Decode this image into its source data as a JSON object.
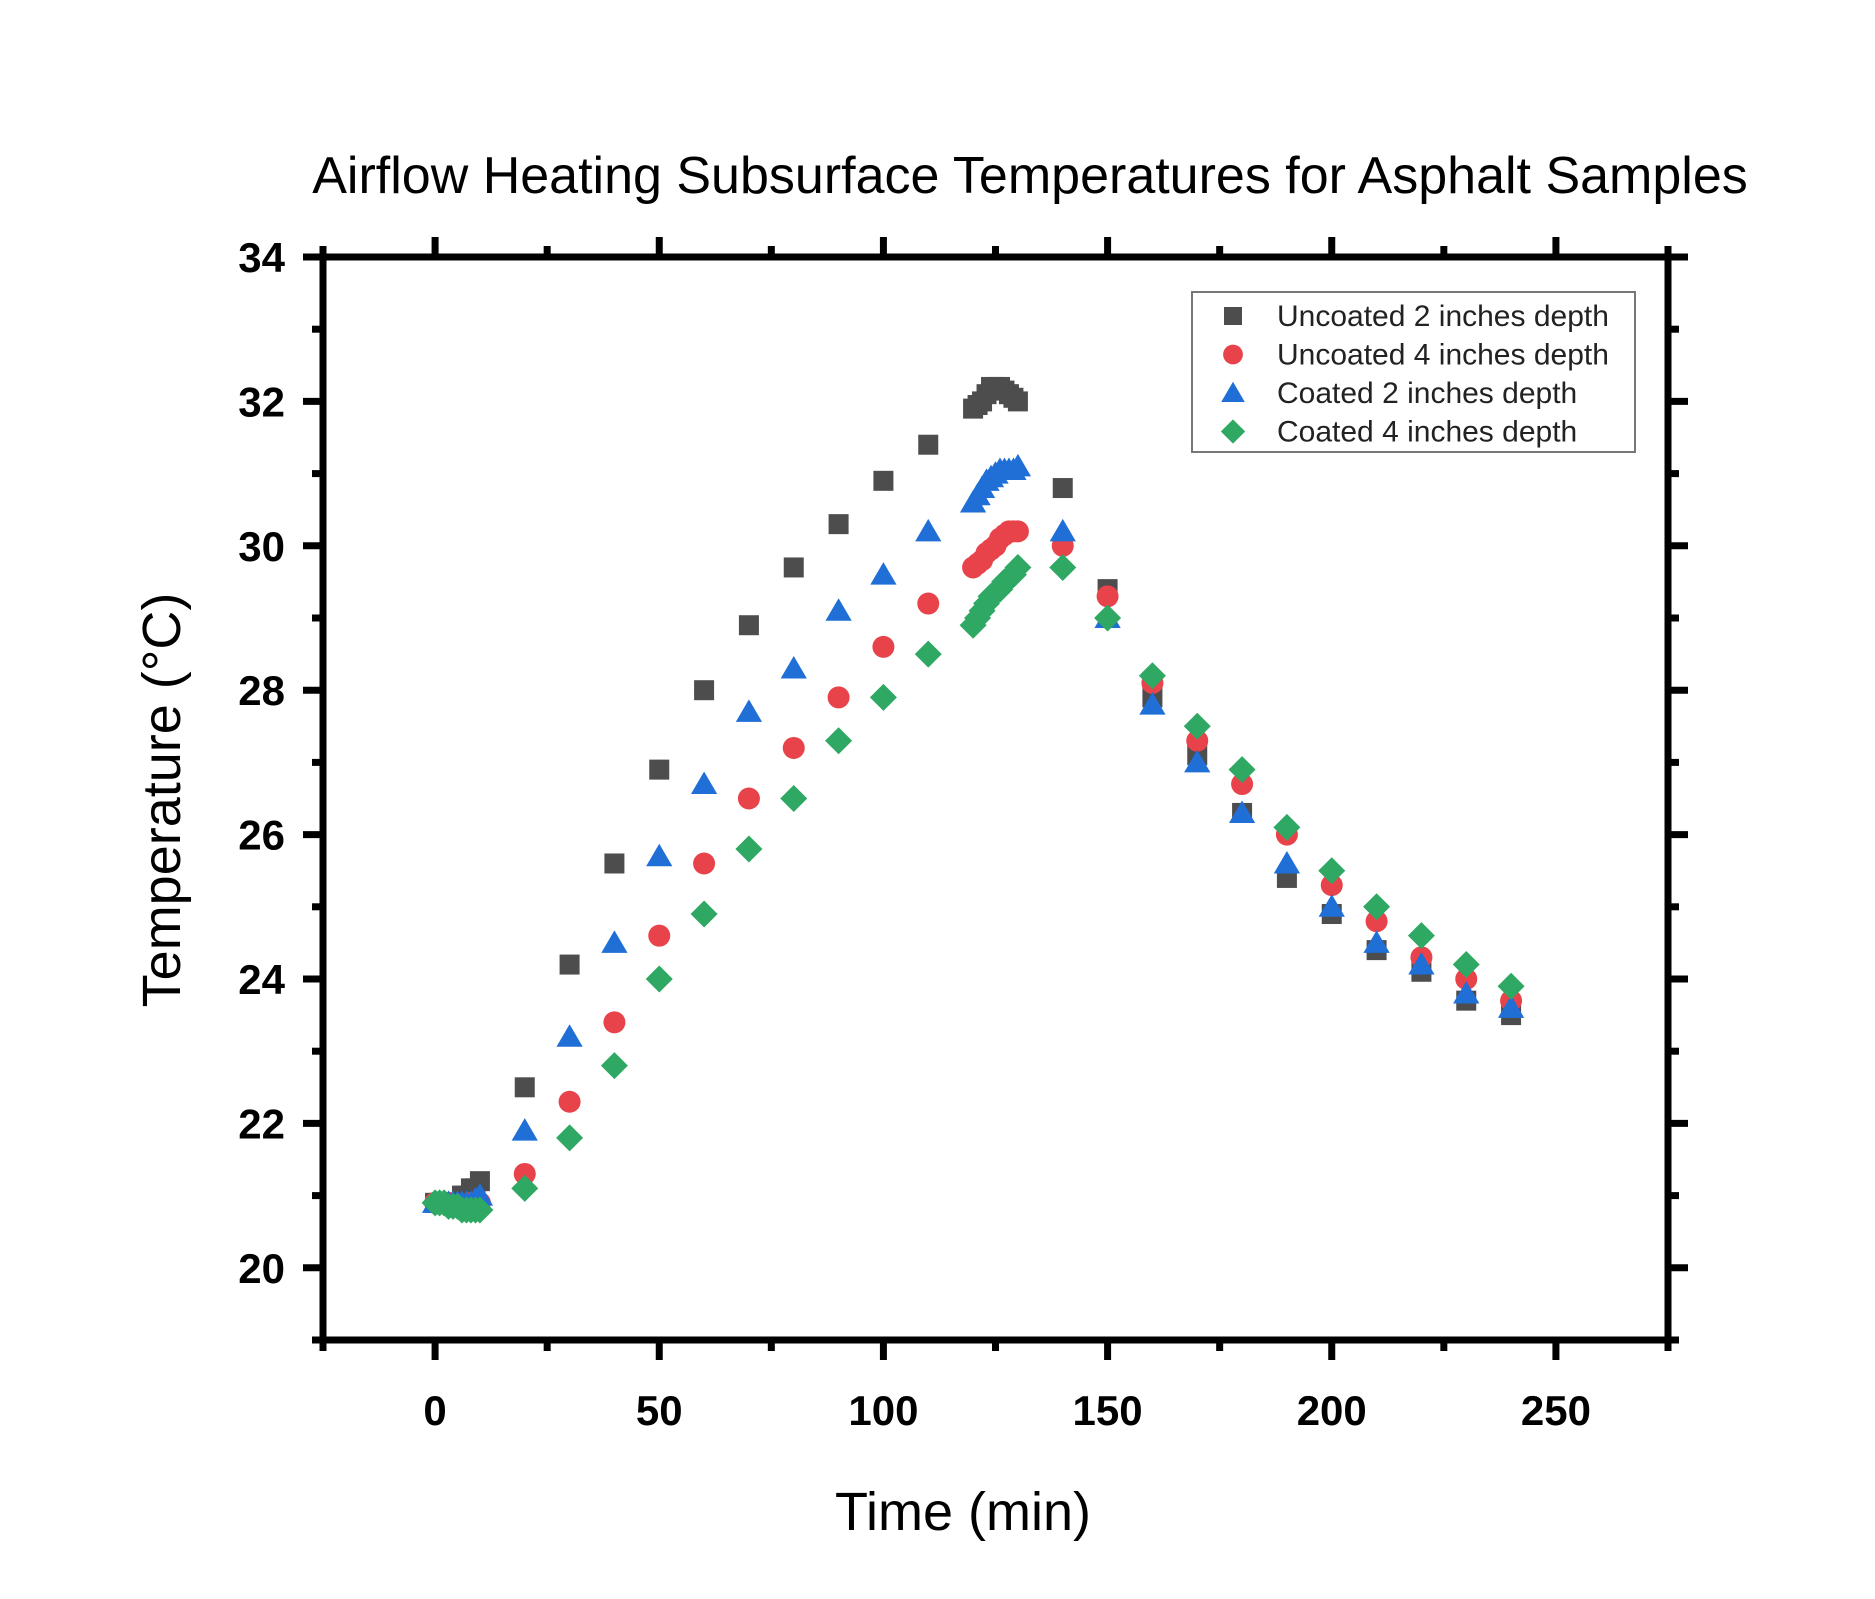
{
  "chart_data": {
    "type": "scatter",
    "title": "Airflow Heating Subsurface Temperatures for Asphalt Samples",
    "xlabel": "Time (min)",
    "ylabel": "Temperature (°C)",
    "xlim": [
      -25,
      275
    ],
    "ylim": [
      19,
      34
    ],
    "xticks": [
      0,
      50,
      100,
      150,
      200,
      250
    ],
    "yticks": [
      20,
      22,
      24,
      26,
      28,
      30,
      32,
      34
    ],
    "xtick_labels": [
      "0",
      "50",
      "100",
      "150",
      "200",
      "250"
    ],
    "ytick_labels": [
      "20",
      "22",
      "24",
      "26",
      "28",
      "30",
      "32",
      "34"
    ],
    "legend_position": "top-right",
    "series": [
      {
        "name": "Uncoated 2 inches depth",
        "marker": "square",
        "color": "#4d4d4d",
        "points": [
          [
            0,
            20.9
          ],
          [
            1,
            20.9
          ],
          [
            2,
            20.9
          ],
          [
            3,
            20.9
          ],
          [
            4,
            20.9
          ],
          [
            5,
            20.9
          ],
          [
            6,
            21.0
          ],
          [
            7,
            21.0
          ],
          [
            8,
            21.1
          ],
          [
            9,
            21.1
          ],
          [
            10,
            21.2
          ],
          [
            20,
            22.5
          ],
          [
            30,
            24.2
          ],
          [
            40,
            25.6
          ],
          [
            50,
            26.9
          ],
          [
            60,
            28.0
          ],
          [
            70,
            28.9
          ],
          [
            80,
            29.7
          ],
          [
            90,
            30.3
          ],
          [
            100,
            30.9
          ],
          [
            110,
            31.4
          ],
          [
            120,
            31.9
          ],
          [
            121,
            31.95
          ],
          [
            122,
            32.0
          ],
          [
            123,
            32.1
          ],
          [
            124,
            32.2
          ],
          [
            125,
            32.2
          ],
          [
            126,
            32.2
          ],
          [
            127,
            32.15
          ],
          [
            128,
            32.1
          ],
          [
            129,
            32.05
          ],
          [
            130,
            32.0
          ],
          [
            140,
            30.8
          ],
          [
            150,
            29.4
          ],
          [
            160,
            27.9
          ],
          [
            170,
            27.1
          ],
          [
            180,
            26.3
          ],
          [
            190,
            25.4
          ],
          [
            200,
            24.9
          ],
          [
            210,
            24.4
          ],
          [
            220,
            24.1
          ],
          [
            230,
            23.7
          ],
          [
            240,
            23.5
          ]
        ]
      },
      {
        "name": "Uncoated 4 inches depth",
        "marker": "circle",
        "color": "#e8434b",
        "points": [
          [
            0,
            20.9
          ],
          [
            1,
            20.9
          ],
          [
            2,
            20.9
          ],
          [
            3,
            20.9
          ],
          [
            4,
            20.85
          ],
          [
            5,
            20.85
          ],
          [
            6,
            20.85
          ],
          [
            7,
            20.85
          ],
          [
            8,
            20.9
          ],
          [
            9,
            20.9
          ],
          [
            10,
            20.9
          ],
          [
            20,
            21.3
          ],
          [
            30,
            22.3
          ],
          [
            40,
            23.4
          ],
          [
            50,
            24.6
          ],
          [
            60,
            25.6
          ],
          [
            70,
            26.5
          ],
          [
            80,
            27.2
          ],
          [
            90,
            27.9
          ],
          [
            100,
            28.6
          ],
          [
            110,
            29.2
          ],
          [
            120,
            29.7
          ],
          [
            121,
            29.75
          ],
          [
            122,
            29.8
          ],
          [
            123,
            29.9
          ],
          [
            124,
            29.95
          ],
          [
            125,
            30.0
          ],
          [
            126,
            30.1
          ],
          [
            127,
            30.15
          ],
          [
            128,
            30.2
          ],
          [
            129,
            30.2
          ],
          [
            130,
            30.2
          ],
          [
            140,
            30.0
          ],
          [
            150,
            29.3
          ],
          [
            160,
            28.1
          ],
          [
            170,
            27.3
          ],
          [
            180,
            26.7
          ],
          [
            190,
            26.0
          ],
          [
            200,
            25.3
          ],
          [
            210,
            24.8
          ],
          [
            220,
            24.3
          ],
          [
            230,
            24.0
          ],
          [
            240,
            23.7
          ]
        ]
      },
      {
        "name": "Coated 2 inches depth",
        "marker": "triangle",
        "color": "#1f6fd6",
        "points": [
          [
            0,
            20.9
          ],
          [
            1,
            20.9
          ],
          [
            2,
            20.9
          ],
          [
            3,
            20.9
          ],
          [
            4,
            20.9
          ],
          [
            5,
            20.9
          ],
          [
            6,
            20.9
          ],
          [
            7,
            20.9
          ],
          [
            8,
            20.9
          ],
          [
            9,
            20.95
          ],
          [
            10,
            21.0
          ],
          [
            20,
            21.9
          ],
          [
            30,
            23.2
          ],
          [
            40,
            24.5
          ],
          [
            50,
            25.7
          ],
          [
            60,
            26.7
          ],
          [
            70,
            27.7
          ],
          [
            80,
            28.3
          ],
          [
            90,
            29.1
          ],
          [
            100,
            29.6
          ],
          [
            110,
            30.2
          ],
          [
            120,
            30.6
          ],
          [
            121,
            30.7
          ],
          [
            122,
            30.8
          ],
          [
            123,
            30.9
          ],
          [
            124,
            30.95
          ],
          [
            125,
            31.0
          ],
          [
            126,
            31.05
          ],
          [
            127,
            31.05
          ],
          [
            128,
            31.05
          ],
          [
            129,
            31.05
          ],
          [
            130,
            31.1
          ],
          [
            140,
            30.2
          ],
          [
            150,
            29.0
          ],
          [
            160,
            27.8
          ],
          [
            170,
            27.0
          ],
          [
            180,
            26.3
          ],
          [
            190,
            25.6
          ],
          [
            200,
            25.0
          ],
          [
            210,
            24.5
          ],
          [
            220,
            24.2
          ],
          [
            230,
            23.8
          ],
          [
            240,
            23.6
          ]
        ]
      },
      {
        "name": "Coated 4 inches depth",
        "marker": "diamond",
        "color": "#2ea862",
        "points": [
          [
            0,
            20.9
          ],
          [
            1,
            20.9
          ],
          [
            2,
            20.9
          ],
          [
            3,
            20.85
          ],
          [
            4,
            20.85
          ],
          [
            5,
            20.85
          ],
          [
            6,
            20.8
          ],
          [
            7,
            20.8
          ],
          [
            8,
            20.8
          ],
          [
            9,
            20.8
          ],
          [
            10,
            20.8
          ],
          [
            20,
            21.1
          ],
          [
            30,
            21.8
          ],
          [
            40,
            22.8
          ],
          [
            50,
            24.0
          ],
          [
            60,
            24.9
          ],
          [
            70,
            25.8
          ],
          [
            80,
            26.5
          ],
          [
            90,
            27.3
          ],
          [
            100,
            27.9
          ],
          [
            110,
            28.5
          ],
          [
            120,
            28.9
          ],
          [
            121,
            29.0
          ],
          [
            122,
            29.1
          ],
          [
            123,
            29.2
          ],
          [
            124,
            29.3
          ],
          [
            125,
            29.35
          ],
          [
            126,
            29.4
          ],
          [
            127,
            29.5
          ],
          [
            128,
            29.55
          ],
          [
            129,
            29.6
          ],
          [
            130,
            29.7
          ],
          [
            140,
            29.7
          ],
          [
            150,
            29.0
          ],
          [
            160,
            28.2
          ],
          [
            170,
            27.5
          ],
          [
            180,
            26.9
          ],
          [
            190,
            26.1
          ],
          [
            200,
            25.5
          ],
          [
            210,
            25.0
          ],
          [
            220,
            24.6
          ],
          [
            230,
            24.2
          ],
          [
            240,
            23.9
          ]
        ]
      }
    ]
  }
}
